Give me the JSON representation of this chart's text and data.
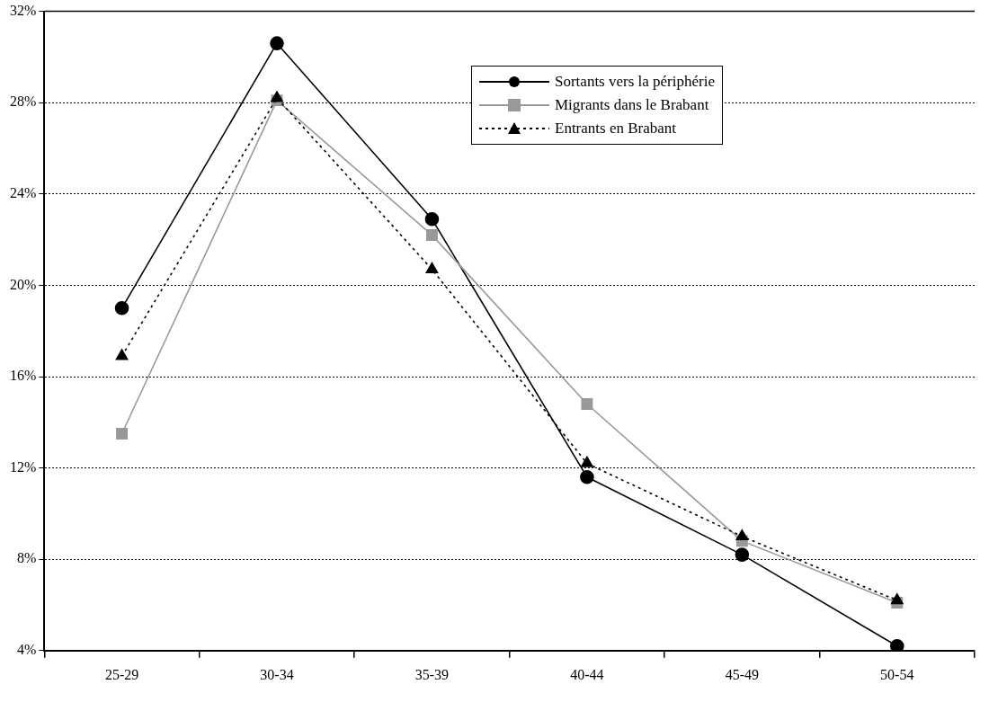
{
  "chart_data": {
    "type": "line",
    "categories": [
      "25-29",
      "30-34",
      "35-39",
      "40-44",
      "45-49",
      "50-54"
    ],
    "series": [
      {
        "name": "Sortants vers la périphérie",
        "color": "#000000",
        "marker": "circle",
        "line_style": "solid",
        "values": [
          19.0,
          30.6,
          22.9,
          11.6,
          8.2,
          4.2
        ]
      },
      {
        "name": "Migrants dans le Brabant",
        "color": "#999999",
        "marker": "square",
        "line_style": "solid",
        "values": [
          13.5,
          28.1,
          22.2,
          14.8,
          8.8,
          6.1
        ]
      },
      {
        "name": "Entrants en Brabant",
        "color": "#000000",
        "marker": "triangle",
        "line_style": "dotted",
        "values": [
          16.9,
          28.2,
          20.7,
          12.2,
          9.0,
          6.2
        ]
      }
    ],
    "ylim": [
      4,
      32
    ],
    "yticks": [
      {
        "value": 4,
        "label": "4%"
      },
      {
        "value": 8,
        "label": "8%"
      },
      {
        "value": 12,
        "label": "12%"
      },
      {
        "value": 16,
        "label": "16%"
      },
      {
        "value": 20,
        "label": "20%"
      },
      {
        "value": 24,
        "label": "24%"
      },
      {
        "value": 28,
        "label": "28%"
      },
      {
        "value": 32,
        "label": "32%"
      }
    ],
    "grid": "y",
    "legend": "top right"
  }
}
